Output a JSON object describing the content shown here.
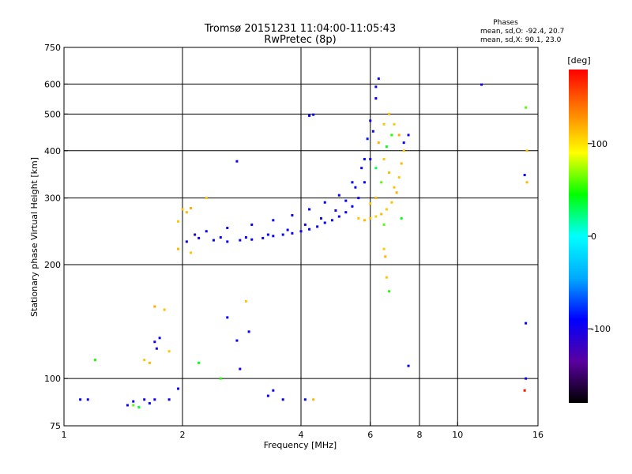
{
  "chart_data": {
    "type": "scatter",
    "title_line1": "Tromsø 20151231 11:04:00-11:05:43",
    "title_line2": "RwPretec (8p)",
    "xlabel": "Frequency [MHz]",
    "ylabel": "Stationary phase Virtual Height [km]",
    "x_scale": "log",
    "y_scale": "log",
    "xlim": [
      1,
      16
    ],
    "ylim": [
      75,
      750
    ],
    "x_ticks": [
      {
        "value": 1,
        "label": "1"
      },
      {
        "value": 2,
        "label": "2"
      },
      {
        "value": 4,
        "label": "4"
      },
      {
        "value": 6,
        "label": "6"
      },
      {
        "value": 8,
        "label": "8"
      },
      {
        "value": 10,
        "label": "10"
      },
      {
        "value": 16,
        "label": "16"
      }
    ],
    "y_ticks": [
      {
        "value": 75,
        "label": "75"
      },
      {
        "value": 100,
        "label": "100"
      },
      {
        "value": 200,
        "label": "200"
      },
      {
        "value": 300,
        "label": "300"
      },
      {
        "value": 400,
        "label": "400"
      },
      {
        "value": 500,
        "label": "500"
      },
      {
        "value": 600,
        "label": "600"
      },
      {
        "value": 750,
        "label": "750"
      }
    ],
    "grid": true,
    "phases": {
      "heading": "Phases",
      "line_o": "mean, sd,O: -92.4, 20.7",
      "line_x": "mean, sd,X:  90.1, 23.0"
    },
    "colorbar": {
      "label": "[deg]",
      "range": [
        -180,
        180
      ],
      "ticks": [
        {
          "value": 100,
          "label": "100"
        },
        {
          "value": 0,
          "label": "0"
        },
        {
          "value": -100,
          "label": "-100"
        }
      ],
      "stops": [
        "#000000",
        "#5a00a0",
        "#0000ff",
        "#00aaff",
        "#00ffff",
        "#00ff00",
        "#ffff00",
        "#ff8000",
        "#ff0000"
      ]
    },
    "series": [
      {
        "points": [
          [
            2.05,
            230,
            -95
          ],
          [
            2.2,
            235,
            -100
          ],
          [
            2.4,
            232,
            -90
          ],
          [
            2.6,
            230,
            -95
          ],
          [
            2.8,
            232,
            -100
          ],
          [
            3.0,
            233,
            -92
          ],
          [
            3.2,
            235,
            -95
          ],
          [
            3.4,
            238,
            -90
          ],
          [
            3.6,
            240,
            -88
          ],
          [
            3.8,
            242,
            -95
          ],
          [
            4.0,
            245,
            -92
          ],
          [
            4.2,
            248,
            -90
          ],
          [
            4.4,
            252,
            -95
          ],
          [
            4.6,
            258,
            -92
          ],
          [
            4.8,
            262,
            -90
          ],
          [
            5.0,
            268,
            -95
          ],
          [
            5.2,
            275,
            -92
          ],
          [
            5.4,
            285,
            -90
          ],
          [
            5.6,
            300,
            -95
          ],
          [
            5.8,
            330,
            -92
          ],
          [
            6.0,
            380,
            -90
          ],
          [
            6.1,
            450,
            -95
          ],
          [
            6.2,
            550,
            -92
          ],
          [
            6.3,
            620,
            -90
          ],
          [
            2.3,
            245,
            -100
          ],
          [
            2.6,
            250,
            -95
          ],
          [
            3.0,
            255,
            -92
          ],
          [
            3.4,
            262,
            -90
          ],
          [
            3.8,
            270,
            -95
          ],
          [
            4.2,
            280,
            -92
          ],
          [
            4.6,
            292,
            -90
          ],
          [
            5.0,
            305,
            -95
          ],
          [
            5.4,
            330,
            -92
          ],
          [
            5.8,
            380,
            -90
          ],
          [
            6.0,
            480,
            -95
          ],
          [
            6.2,
            590,
            -100
          ],
          [
            5.9,
            430,
            -85
          ],
          [
            5.7,
            360,
            -88
          ],
          [
            5.5,
            320,
            -93
          ],
          [
            5.2,
            295,
            -90
          ],
          [
            4.9,
            278,
            -97
          ],
          [
            4.5,
            265,
            -92
          ],
          [
            4.1,
            255,
            -95
          ],
          [
            3.7,
            247,
            -92
          ],
          [
            3.3,
            240,
            -90
          ],
          [
            2.9,
            236,
            -95
          ],
          [
            2.5,
            236,
            -92
          ],
          [
            2.15,
            240,
            -105
          ],
          [
            5.6,
            265,
            110
          ],
          [
            5.8,
            262,
            115
          ],
          [
            6.0,
            265,
            112
          ],
          [
            6.2,
            268,
            108
          ],
          [
            6.4,
            272,
            115
          ],
          [
            6.6,
            280,
            110
          ],
          [
            6.8,
            292,
            112
          ],
          [
            7.0,
            310,
            118
          ],
          [
            7.1,
            340,
            110
          ],
          [
            7.2,
            370,
            115
          ],
          [
            7.3,
            400,
            112
          ],
          [
            7.1,
            440,
            120
          ],
          [
            6.9,
            470,
            110
          ],
          [
            6.7,
            500,
            115
          ],
          [
            6.5,
            470,
            112
          ],
          [
            6.3,
            420,
            118
          ],
          [
            6.5,
            380,
            110
          ],
          [
            6.7,
            350,
            115
          ],
          [
            6.9,
            320,
            112
          ],
          [
            6.2,
            300,
            118
          ],
          [
            6.0,
            290,
            110
          ],
          [
            6.4,
            330,
            60
          ],
          [
            6.6,
            410,
            40
          ],
          [
            6.2,
            360,
            30
          ],
          [
            6.8,
            440,
            50
          ],
          [
            1.1,
            88,
            -90
          ],
          [
            1.15,
            88,
            -95
          ],
          [
            1.45,
            85,
            -100
          ],
          [
            1.5,
            87,
            -92
          ],
          [
            1.6,
            88,
            -95
          ],
          [
            1.65,
            86,
            -90
          ],
          [
            1.7,
            88,
            -95
          ],
          [
            1.85,
            88,
            -92
          ],
          [
            1.95,
            94,
            -95
          ],
          [
            1.7,
            125,
            -100
          ],
          [
            1.72,
            120,
            -95
          ],
          [
            1.75,
            128,
            -92
          ],
          [
            1.6,
            112,
            110
          ],
          [
            1.65,
            110,
            115
          ],
          [
            1.7,
            155,
            120
          ],
          [
            1.8,
            152,
            112
          ],
          [
            1.5,
            85,
            60
          ],
          [
            1.55,
            84,
            40
          ],
          [
            1.2,
            112,
            50
          ],
          [
            1.85,
            118,
            110
          ],
          [
            2.6,
            145,
            -95
          ],
          [
            2.75,
            126,
            -92
          ],
          [
            2.8,
            106,
            -100
          ],
          [
            2.9,
            160,
            110
          ],
          [
            2.95,
            133,
            -90
          ],
          [
            2.75,
            375,
            -95
          ],
          [
            3.3,
            90,
            -95
          ],
          [
            3.6,
            88,
            -92
          ],
          [
            4.1,
            88,
            -95
          ],
          [
            4.3,
            88,
            115
          ],
          [
            4.2,
            495,
            -90
          ],
          [
            4.3,
            498,
            -88
          ],
          [
            1.95,
            260,
            110
          ],
          [
            2.0,
            280,
            112
          ],
          [
            2.05,
            275,
            115
          ],
          [
            2.1,
            282,
            118
          ],
          [
            2.3,
            300,
            110
          ],
          [
            1.95,
            220,
            115
          ],
          [
            2.1,
            215,
            112
          ],
          [
            6.5,
            220,
            110
          ],
          [
            6.55,
            210,
            115
          ],
          [
            6.6,
            185,
            112
          ],
          [
            6.7,
            170,
            50
          ],
          [
            6.5,
            255,
            60
          ],
          [
            7.2,
            265,
            40
          ],
          [
            7.5,
            440,
            -95
          ],
          [
            7.3,
            420,
            -92
          ],
          [
            11.5,
            598,
            -100
          ],
          [
            14.9,
            100,
            -95
          ],
          [
            14.9,
            140,
            -92
          ],
          [
            15.0,
            330,
            115
          ],
          [
            14.8,
            345,
            -95
          ],
          [
            15.0,
            400,
            110
          ],
          [
            14.9,
            520,
            60
          ],
          [
            14.8,
            93,
            175
          ],
          [
            7.5,
            108,
            -95
          ],
          [
            2.5,
            100,
            50
          ],
          [
            2.2,
            110,
            40
          ],
          [
            3.4,
            93,
            -100
          ]
        ]
      }
    ]
  }
}
